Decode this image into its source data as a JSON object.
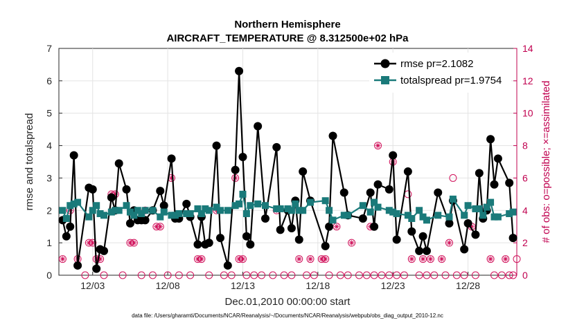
{
  "chart_data": {
    "type": "line",
    "title_line1": "Northern Hemisphere",
    "title_line2": "AIRCRAFT_TEMPERATURE @ 8.312500e+02 hPa",
    "xlabel": "Dec.01,2010 00:00:00 start",
    "ylabel_left": "rmse and totalspread",
    "ylabel_right": "# of obs: o=possible; ×=assimilated",
    "footnote": "data file: /Users/gharamti/Documents/NCAR/Reanalysis/~/Documents/NCAR/Reanalysis/webpub/obs_diag_output_2010-12.nc",
    "xlim": [
      0.75,
      31.25
    ],
    "ylim_left": [
      0,
      7
    ],
    "ylim_right": [
      0,
      14
    ],
    "left_ticks": [
      "0",
      "1",
      "2",
      "3",
      "4",
      "5",
      "6",
      "7"
    ],
    "right_ticks": [
      "0",
      "2",
      "4",
      "6",
      "8",
      "10",
      "12",
      "14"
    ],
    "x_ticks": [
      {
        "x": 3,
        "label": "12/03"
      },
      {
        "x": 8,
        "label": "12/08"
      },
      {
        "x": 13,
        "label": "12/13"
      },
      {
        "x": 18,
        "label": "12/18"
      },
      {
        "x": 23,
        "label": "12/23"
      },
      {
        "x": 28,
        "label": "12/28"
      }
    ],
    "series": [
      {
        "name": "rmse",
        "legend": "rmse pr=2.1082",
        "color": "#000000",
        "marker": "circle",
        "points": [
          [
            1.0,
            1.7
          ],
          [
            1.25,
            1.2
          ],
          [
            1.5,
            1.5
          ],
          [
            1.75,
            3.7
          ],
          [
            2.0,
            0.3
          ],
          [
            2.75,
            2.7
          ],
          [
            3.0,
            2.65
          ],
          [
            3.25,
            0.2
          ],
          [
            3.5,
            0.8
          ],
          [
            3.75,
            0.75
          ],
          [
            4.25,
            2.4
          ],
          [
            4.5,
            2.0
          ],
          [
            4.75,
            3.45
          ],
          [
            5.25,
            2.65
          ],
          [
            5.5,
            1.6
          ],
          [
            5.75,
            2.0
          ],
          [
            6.0,
            1.7
          ],
          [
            6.25,
            1.7
          ],
          [
            6.5,
            1.7
          ],
          [
            7.0,
            2.0
          ],
          [
            7.5,
            2.6
          ],
          [
            7.75,
            2.15
          ],
          [
            8.25,
            3.6
          ],
          [
            8.5,
            1.75
          ],
          [
            8.75,
            1.75
          ],
          [
            9.25,
            2.2
          ],
          [
            9.5,
            1.8
          ],
          [
            10.0,
            0.95
          ],
          [
            10.25,
            1.8
          ],
          [
            10.5,
            0.95
          ],
          [
            10.75,
            1.0
          ],
          [
            11.25,
            4.0
          ],
          [
            11.5,
            1.15
          ],
          [
            12.0,
            0.3
          ],
          [
            12.5,
            3.25
          ],
          [
            12.75,
            6.3
          ],
          [
            13.0,
            3.65
          ],
          [
            13.25,
            1.2
          ],
          [
            13.5,
            0.95
          ],
          [
            14.0,
            4.6
          ],
          [
            14.5,
            1.75
          ],
          [
            15.25,
            3.95
          ],
          [
            15.5,
            1.4
          ],
          [
            16.0,
            2.0
          ],
          [
            16.25,
            1.45
          ],
          [
            16.5,
            2.3
          ],
          [
            16.75,
            1.1
          ],
          [
            17.0,
            3.2
          ],
          [
            17.5,
            2.3
          ],
          [
            18.5,
            0.9
          ],
          [
            18.75,
            1.5
          ],
          [
            19.0,
            4.3
          ],
          [
            19.75,
            2.55
          ],
          [
            20.0,
            1.85
          ],
          [
            21.0,
            1.75
          ],
          [
            21.5,
            2.55
          ],
          [
            21.75,
            1.5
          ],
          [
            22.0,
            2.8
          ],
          [
            22.75,
            2.65
          ],
          [
            23.0,
            3.7
          ],
          [
            23.25,
            1.1
          ],
          [
            24.0,
            3.2
          ],
          [
            24.25,
            1.35
          ],
          [
            24.75,
            0.75
          ],
          [
            25.0,
            1.2
          ],
          [
            25.25,
            0.75
          ],
          [
            26.0,
            2.55
          ],
          [
            26.75,
            1.6
          ],
          [
            27.0,
            2.3
          ],
          [
            27.75,
            0.8
          ],
          [
            28.0,
            1.6
          ],
          [
            28.5,
            1.25
          ],
          [
            28.75,
            3.15
          ],
          [
            29.0,
            1.75
          ],
          [
            29.25,
            2.0
          ],
          [
            29.5,
            4.2
          ],
          [
            29.75,
            2.8
          ],
          [
            30.0,
            3.6
          ],
          [
            30.75,
            2.85
          ],
          [
            31.0,
            1.15
          ]
        ]
      },
      {
        "name": "totalspread",
        "legend": "totalspread pr=1.9754",
        "color": "#1a7a7a",
        "marker": "square",
        "points": [
          [
            1.0,
            2.0
          ],
          [
            1.25,
            1.75
          ],
          [
            1.5,
            2.15
          ],
          [
            1.75,
            2.2
          ],
          [
            2.0,
            2.25
          ],
          [
            2.75,
            1.8
          ],
          [
            3.0,
            2.0
          ],
          [
            3.25,
            2.15
          ],
          [
            3.5,
            1.9
          ],
          [
            3.75,
            1.85
          ],
          [
            4.25,
            1.95
          ],
          [
            4.5,
            2.0
          ],
          [
            4.75,
            2.0
          ],
          [
            5.25,
            2.15
          ],
          [
            5.5,
            1.95
          ],
          [
            5.75,
            1.85
          ],
          [
            6.0,
            2.0
          ],
          [
            6.25,
            1.9
          ],
          [
            6.5,
            2.0
          ],
          [
            7.0,
            2.0
          ],
          [
            7.5,
            1.8
          ],
          [
            7.75,
            1.95
          ],
          [
            8.25,
            1.85
          ],
          [
            8.5,
            1.85
          ],
          [
            8.75,
            1.9
          ],
          [
            9.25,
            1.9
          ],
          [
            9.5,
            1.9
          ],
          [
            10.0,
            2.05
          ],
          [
            10.25,
            1.9
          ],
          [
            10.5,
            2.05
          ],
          [
            10.75,
            2.0
          ],
          [
            11.25,
            2.1
          ],
          [
            11.5,
            2.0
          ],
          [
            12.0,
            2.0
          ],
          [
            12.5,
            2.15
          ],
          [
            12.75,
            2.2
          ],
          [
            13.0,
            2.5
          ],
          [
            13.25,
            1.9
          ],
          [
            13.5,
            2.15
          ],
          [
            14.0,
            2.2
          ],
          [
            14.5,
            2.15
          ],
          [
            15.25,
            2.05
          ],
          [
            15.5,
            2.05
          ],
          [
            16.0,
            2.05
          ],
          [
            16.25,
            2.0
          ],
          [
            16.5,
            2.2
          ],
          [
            16.75,
            2.0
          ],
          [
            17.0,
            2.0
          ],
          [
            17.5,
            2.25
          ],
          [
            18.5,
            2.3
          ],
          [
            18.75,
            2.0
          ],
          [
            19.0,
            1.7
          ],
          [
            19.75,
            1.85
          ],
          [
            20.0,
            1.85
          ],
          [
            21.0,
            2.15
          ],
          [
            21.5,
            1.95
          ],
          [
            21.75,
            2.25
          ],
          [
            22.0,
            2.1
          ],
          [
            22.75,
            2.0
          ],
          [
            23.0,
            1.95
          ],
          [
            23.25,
            1.9
          ],
          [
            24.0,
            1.85
          ],
          [
            24.25,
            1.75
          ],
          [
            24.75,
            2.0
          ],
          [
            25.0,
            1.8
          ],
          [
            25.25,
            1.7
          ],
          [
            26.0,
            1.85
          ],
          [
            26.75,
            1.8
          ],
          [
            27.0,
            2.35
          ],
          [
            27.75,
            1.85
          ],
          [
            28.0,
            2.15
          ],
          [
            28.5,
            2.05
          ],
          [
            28.75,
            2.05
          ],
          [
            29.0,
            1.85
          ],
          [
            29.25,
            2.1
          ],
          [
            29.5,
            2.25
          ],
          [
            29.75,
            1.8
          ],
          [
            30.0,
            1.8
          ],
          [
            30.75,
            1.9
          ],
          [
            31.0,
            1.95
          ]
        ]
      }
    ],
    "obs_possible": [
      [
        1.0,
        1
      ],
      [
        1.5,
        4
      ],
      [
        2.0,
        1
      ],
      [
        2.5,
        0
      ],
      [
        2.75,
        2
      ],
      [
        3.0,
        2
      ],
      [
        3.25,
        1
      ],
      [
        3.5,
        1
      ],
      [
        3.75,
        0
      ],
      [
        4.25,
        5
      ],
      [
        4.5,
        5
      ],
      [
        5.0,
        0
      ],
      [
        5.5,
        2
      ],
      [
        5.75,
        2
      ],
      [
        6.25,
        0
      ],
      [
        6.5,
        4
      ],
      [
        7.0,
        0
      ],
      [
        7.25,
        3
      ],
      [
        7.5,
        3
      ],
      [
        8.0,
        0
      ],
      [
        8.25,
        6
      ],
      [
        8.75,
        0
      ],
      [
        9.5,
        0
      ],
      [
        10.0,
        1
      ],
      [
        10.25,
        1
      ],
      [
        10.75,
        0
      ],
      [
        11.25,
        4
      ],
      [
        11.75,
        0
      ],
      [
        12.25,
        0
      ],
      [
        12.5,
        6
      ],
      [
        12.75,
        1
      ],
      [
        13.0,
        1
      ],
      [
        13.25,
        0
      ],
      [
        13.75,
        0
      ],
      [
        14.25,
        0
      ],
      [
        15.0,
        0
      ],
      [
        15.25,
        4
      ],
      [
        15.75,
        0
      ],
      [
        16.25,
        0
      ],
      [
        16.75,
        1
      ],
      [
        17.25,
        0
      ],
      [
        17.5,
        1
      ],
      [
        17.75,
        0
      ],
      [
        18.25,
        1
      ],
      [
        18.5,
        1
      ],
      [
        18.75,
        0
      ],
      [
        19.25,
        3
      ],
      [
        19.5,
        0
      ],
      [
        20.0,
        0
      ],
      [
        20.25,
        2
      ],
      [
        20.75,
        0
      ],
      [
        21.25,
        0
      ],
      [
        21.5,
        3
      ],
      [
        21.75,
        0
      ],
      [
        22.0,
        8
      ],
      [
        22.25,
        0
      ],
      [
        22.75,
        0
      ],
      [
        23.0,
        7
      ],
      [
        23.25,
        0
      ],
      [
        23.75,
        0
      ],
      [
        24.0,
        5
      ],
      [
        24.25,
        1
      ],
      [
        24.75,
        0
      ],
      [
        25.0,
        1
      ],
      [
        25.25,
        0
      ],
      [
        25.5,
        1
      ],
      [
        25.75,
        0
      ],
      [
        26.25,
        1
      ],
      [
        26.5,
        0
      ],
      [
        26.75,
        2
      ],
      [
        27.0,
        6
      ],
      [
        27.25,
        0
      ],
      [
        27.75,
        0
      ],
      [
        28.25,
        3
      ],
      [
        28.5,
        0
      ],
      [
        29.0,
        4
      ],
      [
        29.5,
        1
      ],
      [
        29.75,
        0
      ],
      [
        30.25,
        0
      ],
      [
        30.5,
        1
      ],
      [
        30.75,
        0
      ],
      [
        31.0,
        0
      ],
      [
        31.25,
        1
      ]
    ],
    "obs_assimilated": [
      [
        1.0,
        1
      ],
      [
        1.5,
        4
      ],
      [
        2.0,
        1
      ],
      [
        2.75,
        2
      ],
      [
        3.0,
        2
      ],
      [
        3.25,
        1
      ],
      [
        3.5,
        1
      ],
      [
        4.25,
        5
      ],
      [
        4.5,
        5
      ],
      [
        5.5,
        2
      ],
      [
        5.75,
        2
      ],
      [
        6.5,
        4
      ],
      [
        7.25,
        3
      ],
      [
        7.5,
        3
      ],
      [
        8.25,
        6
      ],
      [
        10.0,
        1
      ],
      [
        10.25,
        1
      ],
      [
        11.25,
        4
      ],
      [
        12.5,
        6
      ],
      [
        12.75,
        1
      ],
      [
        13.0,
        1
      ],
      [
        15.25,
        4
      ],
      [
        16.75,
        1
      ],
      [
        17.5,
        1
      ],
      [
        18.25,
        1
      ],
      [
        18.5,
        1
      ],
      [
        19.25,
        3
      ],
      [
        20.25,
        2
      ],
      [
        21.5,
        3
      ],
      [
        22.0,
        8
      ],
      [
        23.0,
        7
      ],
      [
        24.25,
        1
      ],
      [
        25.0,
        1
      ],
      [
        25.5,
        1
      ],
      [
        26.25,
        1
      ],
      [
        26.75,
        2
      ],
      [
        28.25,
        3
      ],
      [
        29.0,
        4
      ],
      [
        29.5,
        1
      ],
      [
        30.5,
        1
      ]
    ]
  }
}
